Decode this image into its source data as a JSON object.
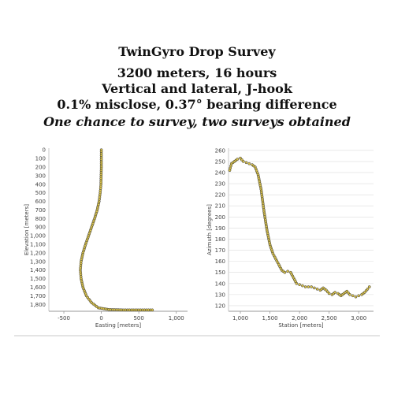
{
  "header": {
    "line1": "TwinGyro Drop Survey",
    "line2": "3200 meters, 16 hours",
    "line3": "Vertical and lateral, J-hook",
    "line4": "0.1% misclose, 0.37° bearing difference",
    "line5": "One chance to survey, two surveys obtained"
  },
  "colors": {
    "marker_fill": "#d9c24a",
    "marker_stroke": "#333333",
    "grid": "#dcdcdc",
    "axis": "#999999",
    "frame": "#c8c8c8"
  },
  "chart_data": [
    {
      "type": "scatter",
      "xlabel": "Easting [meters]",
      "ylabel": "Elevation [meters]",
      "xlim": [
        -700,
        1150
      ],
      "ylim": [
        1880,
        -20
      ],
      "y_inverted": true,
      "xticks": [
        -500,
        0,
        500,
        1000
      ],
      "xtick_labels": [
        "-500",
        "0",
        "500",
        "1,000"
      ],
      "yticks": [
        0,
        100,
        200,
        300,
        400,
        500,
        600,
        700,
        800,
        900,
        1000,
        1100,
        1200,
        1300,
        1400,
        1500,
        1600,
        1700,
        1800
      ],
      "ytick_labels": [
        "0",
        "100",
        "200",
        "300",
        "400",
        "500",
        "600",
        "700",
        "800",
        "900",
        "1,000",
        "1,100",
        "1,200",
        "1,300",
        "1,400",
        "1,500",
        "1,600",
        "1,700",
        "1,800"
      ],
      "series": [
        {
          "points": [
            [
              0,
              0
            ],
            [
              0,
              200
            ],
            [
              -5,
              400
            ],
            [
              -15,
              500
            ],
            [
              -30,
              600
            ],
            [
              -55,
              700
            ],
            [
              -90,
              800
            ],
            [
              -130,
              900
            ],
            [
              -170,
              1000
            ],
            [
              -210,
              1100
            ],
            [
              -245,
              1200
            ],
            [
              -270,
              1300
            ],
            [
              -280,
              1400
            ],
            [
              -270,
              1500
            ],
            [
              -245,
              1600
            ],
            [
              -200,
              1700
            ],
            [
              -130,
              1780
            ],
            [
              -40,
              1840
            ],
            [
              100,
              1860
            ],
            [
              300,
              1865
            ],
            [
              500,
              1865
            ],
            [
              680,
              1865
            ]
          ]
        }
      ]
    },
    {
      "type": "scatter",
      "xlabel": "Station [meters]",
      "ylabel": "Azimuth [degrees]",
      "xlim": [
        800,
        3250
      ],
      "ylim": [
        115,
        262
      ],
      "xticks": [
        1000,
        1500,
        2000,
        2500,
        3000
      ],
      "xtick_labels": [
        "1,000",
        "1,500",
        "2,000",
        "2,500",
        "3,000"
      ],
      "yticks": [
        120,
        130,
        140,
        150,
        160,
        170,
        180,
        190,
        200,
        210,
        220,
        230,
        240,
        250,
        260
      ],
      "ytick_labels": [
        "120",
        "130",
        "140",
        "150",
        "160",
        "170",
        "180",
        "190",
        "200",
        "210",
        "220",
        "230",
        "240",
        "250",
        "260"
      ],
      "series": [
        {
          "points": [
            [
              820,
              242
            ],
            [
              850,
              248
            ],
            [
              900,
              250
            ],
            [
              950,
              252
            ],
            [
              1000,
              253
            ],
            [
              1050,
              250
            ],
            [
              1100,
              249
            ],
            [
              1150,
              248
            ],
            [
              1200,
              247
            ],
            [
              1250,
              245
            ],
            [
              1300,
              238
            ],
            [
              1350,
              225
            ],
            [
              1400,
              205
            ],
            [
              1450,
              188
            ],
            [
              1500,
              175
            ],
            [
              1550,
              167
            ],
            [
              1600,
              162
            ],
            [
              1650,
              157
            ],
            [
              1700,
              152
            ],
            [
              1750,
              150
            ],
            [
              1800,
              151
            ],
            [
              1850,
              150
            ],
            [
              1900,
              145
            ],
            [
              1950,
              140
            ],
            [
              2000,
              139
            ],
            [
              2050,
              138
            ],
            [
              2100,
              137
            ],
            [
              2150,
              137
            ],
            [
              2200,
              137
            ],
            [
              2250,
              136
            ],
            [
              2300,
              135
            ],
            [
              2350,
              134
            ],
            [
              2400,
              136
            ],
            [
              2450,
              134
            ],
            [
              2500,
              131
            ],
            [
              2550,
              130
            ],
            [
              2600,
              132
            ],
            [
              2650,
              131
            ],
            [
              2700,
              129
            ],
            [
              2750,
              131
            ],
            [
              2800,
              133
            ],
            [
              2850,
              130
            ],
            [
              2900,
              129
            ],
            [
              2950,
              128
            ],
            [
              3000,
              129
            ],
            [
              3050,
              130
            ],
            [
              3100,
              132
            ],
            [
              3150,
              135
            ],
            [
              3180,
              137
            ]
          ]
        }
      ]
    }
  ]
}
